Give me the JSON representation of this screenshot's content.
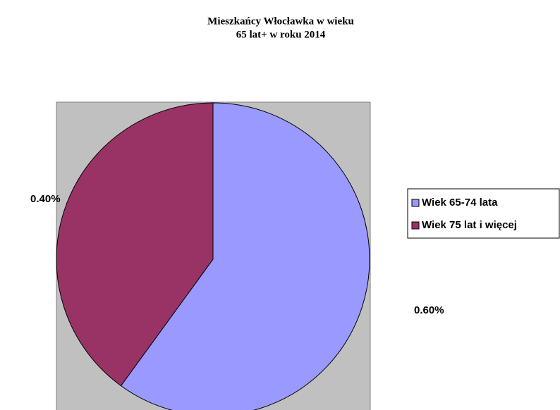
{
  "chart_data": {
    "type": "pie",
    "title": [
      "Mieszkańcy Włocławka w wieku",
      "65 lat+ w roku 2014"
    ],
    "categories": [
      "Wiek 65-74 lata",
      "Wiek 75 lat i więcej"
    ],
    "values": [
      0.6,
      0.4
    ],
    "value_labels": [
      "0.60%",
      "0.40%"
    ],
    "colors": [
      "#9999ff",
      "#993366"
    ],
    "legend": "right"
  }
}
